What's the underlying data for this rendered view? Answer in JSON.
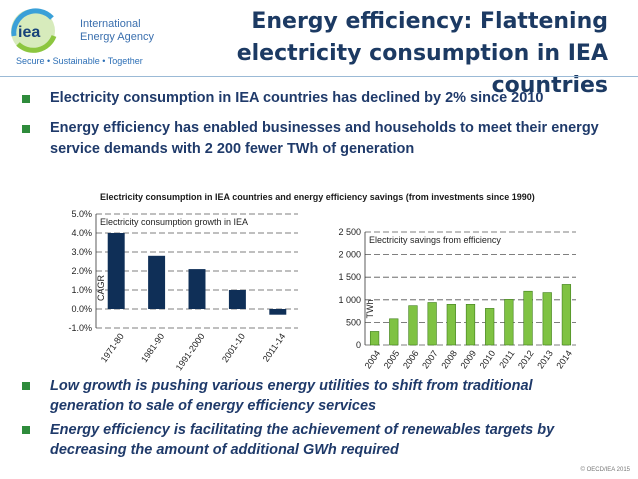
{
  "logo": {
    "line1": "International",
    "line2": "Energy Agency",
    "mark": "iea",
    "tagline": "Secure • Sustainable • Together"
  },
  "title": "Energy efficiency: Flattening electricity consumption in IEA countries",
  "bullets": [
    "Electricity consumption in IEA countries has declined by 2% since 2010",
    "Energy efficiency has enabled businesses and households to meet their energy service demands with 2 200 fewer TWh  of generation"
  ],
  "chart_caption": "Electricity consumption in IEA countries and energy efficiency savings (from investments since 1990)",
  "chart_data": [
    {
      "type": "bar",
      "title": "Electricity consumption growth in IEA",
      "ylabel": "CAGR",
      "categories": [
        "1971-80",
        "1981-90",
        "1991-2000",
        "2001-10",
        "2011-14"
      ],
      "values": [
        4.0,
        2.8,
        2.1,
        1.0,
        -0.3
      ],
      "ylim": [
        -1.0,
        5.0
      ],
      "yticks": [
        "-1.0%",
        "0.0%",
        "1.0%",
        "2.0%",
        "3.0%",
        "4.0%",
        "5.0%"
      ],
      "ytick_values": [
        -1,
        0,
        1,
        2,
        3,
        4,
        5
      ],
      "color": "#0f2f57",
      "grid": true
    },
    {
      "type": "bar",
      "title": "Electricity savings from efficiency",
      "ylabel": "TWh",
      "categories": [
        "2004",
        "2005",
        "2006",
        "2007",
        "2008",
        "2009",
        "2010",
        "2011",
        "2012",
        "2013",
        "2014"
      ],
      "values": [
        300,
        580,
        870,
        940,
        900,
        900,
        810,
        1010,
        1190,
        1160,
        1340
      ],
      "ylim": [
        0,
        2500
      ],
      "yticks": [
        "0",
        "500",
        "1 000",
        "1 500",
        "2 000",
        "2 500"
      ],
      "ytick_values": [
        0,
        500,
        1000,
        1500,
        2000,
        2500
      ],
      "color": "#7fc243",
      "grid": true
    }
  ],
  "bullets_bottom": [
    "Low growth is pushing various energy utilities to shift from traditional generation to sale of energy efficiency services",
    "Energy efficiency is facilitating the achievement of renewables targets by decreasing the amount of additional GWh required"
  ],
  "copyright": "© OECD/IEA 2015"
}
